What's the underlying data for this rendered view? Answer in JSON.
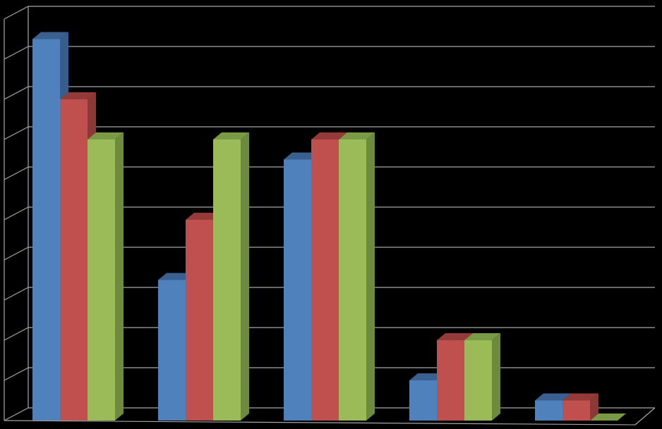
{
  "chart_data": {
    "type": "bar",
    "categories": [
      "",
      "",
      "",
      "",
      ""
    ],
    "series": [
      {
        "values": [
          9.5,
          3.5,
          6.5,
          1.0,
          0.5
        ],
        "colors": {
          "front": "#4f81bd",
          "side": "#385d8a",
          "top": "#3a6090"
        }
      },
      {
        "values": [
          8.0,
          5.0,
          7.0,
          2.0,
          0.5
        ],
        "colors": {
          "front": "#c0504d",
          "side": "#8c3836",
          "top": "#943b39"
        }
      },
      {
        "values": [
          7.0,
          7.0,
          7.0,
          2.0,
          0.0
        ],
        "colors": {
          "front": "#9bbb59",
          "side": "#6e8a3f",
          "top": "#7a9a45"
        }
      }
    ],
    "ylim": [
      0,
      10
    ],
    "grid": true,
    "legend": "none",
    "title": "",
    "xlabel": "",
    "ylabel": "",
    "style": {
      "background": "#000000",
      "gridline": "#a6a6a6",
      "axis": "#a6a6a6"
    }
  }
}
